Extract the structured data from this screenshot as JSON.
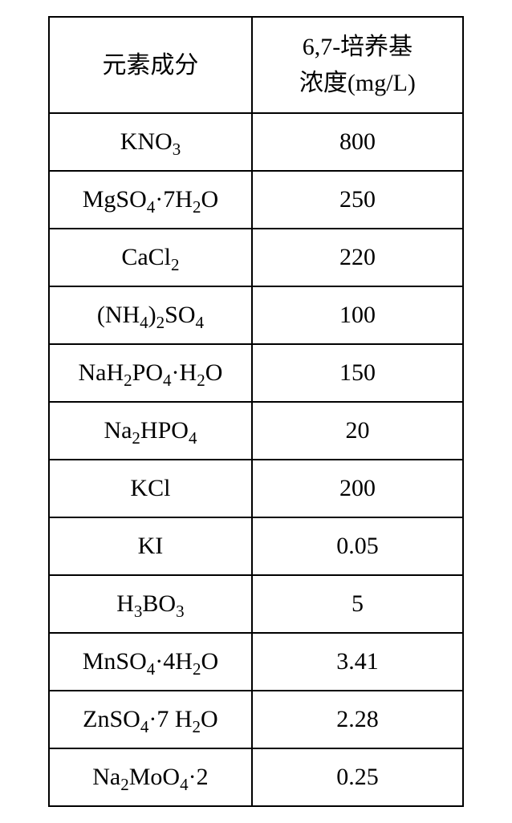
{
  "table": {
    "type": "table",
    "border_color": "#000000",
    "background_color": "#ffffff",
    "text_color": "#000000",
    "header_fontsize": 30,
    "cell_fontsize": 30,
    "border_width": 2,
    "columns": [
      {
        "key": "compound",
        "label": "元素成分",
        "width_pct": 49,
        "align": "center"
      },
      {
        "key": "conc",
        "label_line1": "6,7-培养基",
        "label_line2": "浓度(mg/L)",
        "width_pct": 51,
        "align": "center"
      }
    ],
    "rows": [
      {
        "compound_html": "KNO<sub>3</sub>",
        "compound_plain": "KNO3",
        "conc": "800"
      },
      {
        "compound_html": "MgSO<sub>4</sub>·7H<sub>2</sub>O",
        "compound_plain": "MgSO4·7H2O",
        "conc": "250"
      },
      {
        "compound_html": "CaCl<sub>2</sub>",
        "compound_plain": "CaCl2",
        "conc": "220"
      },
      {
        "compound_html": "(NH<sub>4</sub>)<sub>2</sub>SO<sub>4</sub>",
        "compound_plain": "(NH4)2SO4",
        "conc": "100"
      },
      {
        "compound_html": "NaH<sub>2</sub>PO<sub>4</sub>·H<sub>2</sub>O",
        "compound_plain": "NaH2PO4·H2O",
        "conc": "150"
      },
      {
        "compound_html": "Na<sub>2</sub>HPO<sub>4</sub>",
        "compound_plain": "Na2HPO4",
        "conc": "20"
      },
      {
        "compound_html": "KCl",
        "compound_plain": "KCl",
        "conc": "200"
      },
      {
        "compound_html": "KI",
        "compound_plain": "KI",
        "conc": "0.05"
      },
      {
        "compound_html": "H<sub>3</sub>BO<sub>3</sub>",
        "compound_plain": "H3BO3",
        "conc": "5"
      },
      {
        "compound_html": "MnSO<sub>4</sub>·4H<sub>2</sub>O",
        "compound_plain": "MnSO4·4H2O",
        "conc": "3.41"
      },
      {
        "compound_html": "ZnSO<sub>4</sub>·7 H<sub>2</sub>O",
        "compound_plain": "ZnSO4·7 H2O",
        "conc": "2.28"
      },
      {
        "compound_html": "Na<sub>2</sub>MoO<sub>4</sub>·2",
        "compound_plain": "Na2MoO4·2",
        "conc": "0.25"
      }
    ]
  }
}
